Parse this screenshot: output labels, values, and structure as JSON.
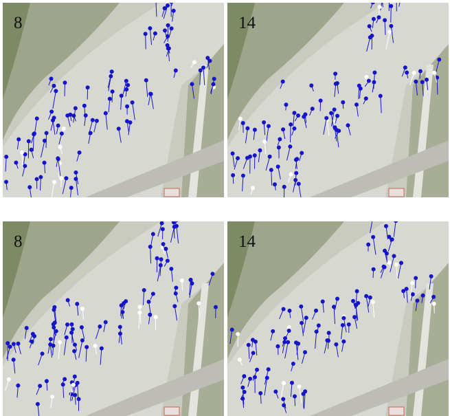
{
  "panels": [
    {
      "label": "8"
    },
    {
      "label": "14"
    },
    {
      "label": "8"
    },
    {
      "label": "14"
    }
  ]
}
